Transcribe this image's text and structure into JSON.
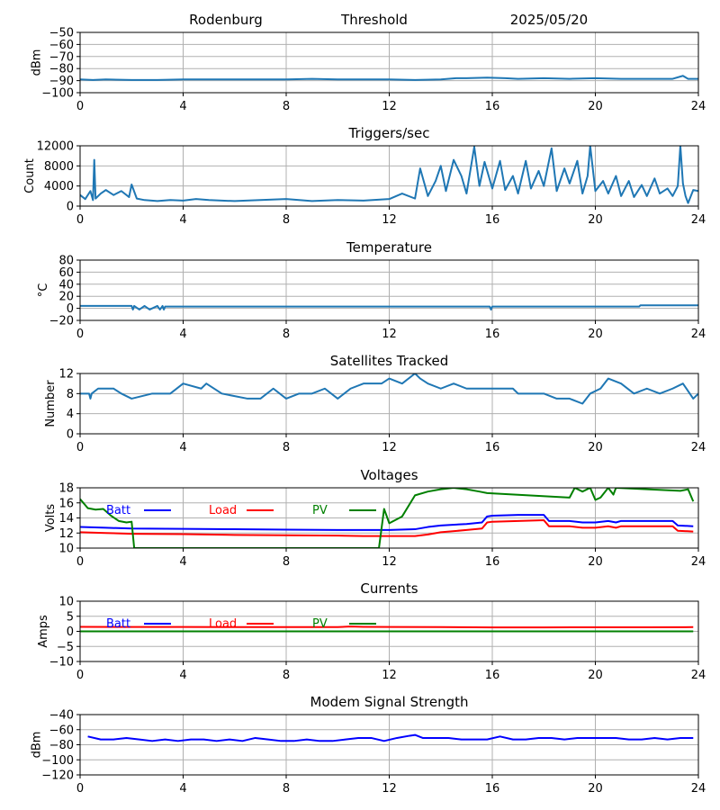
{
  "header": {
    "station": "Rodenburg",
    "mode": "Threshold",
    "date": "2025/05/20"
  },
  "chart_data": [
    {
      "type": "line",
      "title": "",
      "ylabel": "dBm",
      "xlim": [
        0,
        24
      ],
      "ylim": [
        -100,
        -50
      ],
      "xticks": [
        0,
        4,
        8,
        12,
        16,
        20,
        24
      ],
      "yticks": [
        -100,
        -90,
        -80,
        -70,
        -60,
        -50
      ],
      "grid": true,
      "series": [
        {
          "color": "#1f77b4",
          "x": [
            0,
            0.5,
            1,
            2,
            3,
            4,
            5,
            6,
            7,
            8,
            9,
            10,
            11,
            12,
            13,
            14,
            14.6,
            15,
            15.8,
            16.5,
            17,
            18,
            19,
            20,
            21,
            22,
            23,
            23.4,
            23.6,
            24
          ],
          "y": [
            -89,
            -89.5,
            -89,
            -89.5,
            -89.5,
            -89,
            -89,
            -89,
            -89,
            -89,
            -88.5,
            -89,
            -89,
            -89,
            -89.5,
            -89,
            -88,
            -88,
            -87.5,
            -88,
            -88.5,
            -88,
            -88.5,
            -88,
            -88.5,
            -88.5,
            -88.5,
            -86,
            -88.5,
            -88.5
          ]
        }
      ]
    },
    {
      "type": "line",
      "title": "Triggers/sec",
      "ylabel": "Count",
      "xlim": [
        0,
        24
      ],
      "ylim": [
        0,
        12000
      ],
      "xticks": [
        0,
        4,
        8,
        12,
        16,
        20,
        24
      ],
      "yticks": [
        0,
        4000,
        8000,
        12000
      ],
      "grid": true,
      "series": [
        {
          "color": "#1f77b4",
          "x": [
            0,
            0.2,
            0.4,
            0.5,
            0.55,
            0.6,
            0.8,
            1,
            1.3,
            1.6,
            1.9,
            2,
            2.2,
            2.5,
            3,
            3.5,
            4,
            4.5,
            5,
            6,
            7,
            8,
            9,
            10,
            11,
            12,
            12.5,
            13,
            13.2,
            13.5,
            13.8,
            14,
            14.2,
            14.5,
            14.8,
            15,
            15.3,
            15.5,
            15.7,
            16,
            16.3,
            16.5,
            16.8,
            17,
            17.3,
            17.5,
            17.8,
            18,
            18.3,
            18.5,
            18.8,
            19,
            19.3,
            19.5,
            19.7,
            19.8,
            20,
            20.3,
            20.5,
            20.8,
            21,
            21.3,
            21.5,
            21.8,
            22,
            22.3,
            22.5,
            22.8,
            23,
            23.2,
            23.3,
            23.4,
            23.5,
            23.6,
            23.8,
            24
          ],
          "y": [
            2200,
            1400,
            3000,
            1200,
            9200,
            1500,
            2500,
            3200,
            2200,
            3000,
            1800,
            4300,
            1500,
            1200,
            1000,
            1200,
            1100,
            1400,
            1200,
            1000,
            1200,
            1400,
            1000,
            1200,
            1100,
            1400,
            2500,
            1500,
            7500,
            2000,
            5000,
            8000,
            3000,
            9200,
            6000,
            2500,
            11800,
            4000,
            8800,
            3500,
            9000,
            3200,
            6000,
            2500,
            9000,
            3500,
            7000,
            4000,
            11500,
            3000,
            7500,
            4500,
            9000,
            2500,
            6000,
            12000,
            3000,
            5000,
            2500,
            6000,
            2000,
            5000,
            1800,
            4200,
            2000,
            5500,
            2500,
            3500,
            2000,
            4000,
            12000,
            4500,
            2000,
            600,
            3200,
            3000
          ]
        }
      ]
    },
    {
      "type": "line",
      "title": "Temperature",
      "ylabel": "°C",
      "xlim": [
        0,
        24
      ],
      "ylim": [
        -20,
        80
      ],
      "xticks": [
        0,
        4,
        8,
        12,
        16,
        20,
        24
      ],
      "yticks": [
        -20,
        0,
        20,
        40,
        60,
        80
      ],
      "grid": true,
      "series": [
        {
          "color": "#1f77b4",
          "x": [
            0,
            2,
            2.05,
            2.1,
            2.3,
            2.5,
            2.7,
            3.0,
            3.1,
            3.2,
            3.25,
            3.3,
            4,
            8,
            12,
            14.5,
            15.9,
            15.95,
            16,
            18,
            21.7,
            21.75,
            24
          ],
          "y": [
            4,
            4,
            -2,
            4,
            -2,
            4,
            -2,
            4,
            -2,
            4,
            -2,
            3,
            3,
            3,
            3,
            3,
            3,
            -2,
            3,
            3,
            3,
            5,
            5
          ]
        }
      ]
    },
    {
      "type": "line",
      "title": "Satellites Tracked",
      "ylabel": "Number",
      "xlim": [
        0,
        24
      ],
      "ylim": [
        0,
        12
      ],
      "xticks": [
        0,
        4,
        8,
        12,
        16,
        20,
        24
      ],
      "yticks": [
        0,
        4,
        8,
        12
      ],
      "grid": true,
      "series": [
        {
          "color": "#1f77b4",
          "x": [
            0,
            0.35,
            0.4,
            0.45,
            0.7,
            1.3,
            1.6,
            2.0,
            2.8,
            3.5,
            4,
            4.7,
            4.9,
            5.5,
            6.5,
            7,
            7.5,
            8,
            8.5,
            9,
            9.5,
            10,
            10.5,
            11,
            11.7,
            12,
            12.5,
            13,
            13.2,
            13.5,
            14,
            14.5,
            15,
            15.5,
            16,
            16.8,
            17,
            17.5,
            18,
            18.5,
            19,
            19.5,
            19.8,
            20.2,
            20.5,
            21,
            21.5,
            22,
            22.5,
            23,
            23.4,
            23.8,
            24
          ],
          "y": [
            8,
            8,
            7,
            8,
            9,
            9,
            8,
            7,
            8,
            8,
            10,
            9,
            10,
            8,
            7,
            7,
            9,
            7,
            8,
            8,
            9,
            7,
            9,
            10,
            10,
            11,
            10,
            12,
            11,
            10,
            9,
            10,
            9,
            9,
            9,
            9,
            8,
            8,
            8,
            7,
            7,
            6,
            8,
            9,
            11,
            10,
            8,
            9,
            8,
            9,
            10,
            7,
            8
          ]
        }
      ]
    },
    {
      "type": "line",
      "title": "Voltages",
      "ylabel": "Volts",
      "xlim": [
        0,
        24
      ],
      "ylim": [
        10,
        18
      ],
      "xticks": [
        0,
        4,
        8,
        12,
        16,
        20,
        24
      ],
      "yticks": [
        10,
        12,
        14,
        16,
        18
      ],
      "grid": true,
      "legend": "top-left, inline",
      "series": [
        {
          "name": "Batt",
          "color": "#0000ff",
          "x": [
            0,
            1,
            2,
            4,
            6,
            8,
            10,
            11,
            12,
            13,
            13.5,
            14,
            15,
            15.6,
            15.8,
            16,
            17,
            18,
            18.2,
            19,
            19.5,
            20,
            20.5,
            20.8,
            21,
            21.5,
            22,
            23,
            23.2,
            23.8
          ],
          "y": [
            12.8,
            12.7,
            12.6,
            12.55,
            12.5,
            12.45,
            12.4,
            12.4,
            12.4,
            12.5,
            12.8,
            13.0,
            13.2,
            13.4,
            14.2,
            14.3,
            14.4,
            14.4,
            13.6,
            13.6,
            13.4,
            13.4,
            13.6,
            13.4,
            13.6,
            13.6,
            13.6,
            13.6,
            13.0,
            12.9
          ]
        },
        {
          "name": "Load",
          "color": "#ff0000",
          "x": [
            0,
            1,
            2,
            4,
            6,
            8,
            10,
            11,
            12,
            13,
            13.5,
            14,
            15,
            15.6,
            15.8,
            16,
            17,
            18,
            18.2,
            19,
            19.5,
            20,
            20.5,
            20.8,
            21,
            21.5,
            22,
            23,
            23.2,
            23.8
          ],
          "y": [
            12.1,
            12.0,
            11.9,
            11.85,
            11.75,
            11.7,
            11.65,
            11.6,
            11.6,
            11.6,
            11.8,
            12.1,
            12.4,
            12.6,
            13.4,
            13.5,
            13.6,
            13.7,
            12.9,
            12.9,
            12.7,
            12.7,
            12.9,
            12.7,
            12.9,
            12.9,
            12.9,
            12.9,
            12.3,
            12.2
          ]
        },
        {
          "name": "PV",
          "color": "#008000",
          "x": [
            0,
            0.3,
            0.6,
            0.9,
            1.2,
            1.5,
            1.8,
            2.0,
            2.1,
            11.6,
            11.8,
            12.0,
            12.5,
            13.0,
            13.5,
            14.0,
            14.5,
            15.0,
            15.5,
            15.8,
            19.0,
            19.2,
            19.5,
            19.8,
            20.0,
            20.2,
            20.5,
            20.7,
            20.8,
            23.3,
            23.6,
            23.8
          ],
          "y": [
            16.5,
            15.3,
            15.1,
            15.2,
            14.3,
            13.6,
            13.4,
            13.5,
            10,
            10,
            15.2,
            13.3,
            14.2,
            17.0,
            17.5,
            17.8,
            18,
            17.8,
            17.5,
            17.3,
            16.7,
            18,
            17.5,
            18,
            16.4,
            16.7,
            18,
            17.1,
            18,
            17.6,
            17.8,
            16.2
          ]
        }
      ]
    },
    {
      "type": "line",
      "title": "Currents",
      "ylabel": "Amps",
      "xlim": [
        0,
        24
      ],
      "ylim": [
        -10,
        10
      ],
      "xticks": [
        0,
        4,
        8,
        12,
        16,
        20,
        24
      ],
      "yticks": [
        -10,
        -5,
        0,
        5,
        10
      ],
      "grid": true,
      "legend": "top-left, inline",
      "series": [
        {
          "name": "Batt",
          "color": "#0000ff",
          "x": [],
          "y": []
        },
        {
          "name": "Load",
          "color": "#ff0000",
          "x": [
            0,
            2,
            4,
            6,
            8,
            10,
            10.5,
            11,
            12,
            14,
            16,
            18,
            20,
            22,
            23.8
          ],
          "y": [
            1.5,
            1.45,
            1.45,
            1.4,
            1.4,
            1.4,
            1.6,
            1.5,
            1.45,
            1.4,
            1.3,
            1.3,
            1.35,
            1.35,
            1.4
          ]
        },
        {
          "name": "PV",
          "color": "#008000",
          "x": [
            0,
            23.8
          ],
          "y": [
            0,
            0
          ]
        }
      ]
    },
    {
      "type": "line",
      "title": "Modem Signal Strength",
      "ylabel": "dBm",
      "xlim": [
        0,
        24
      ],
      "ylim": [
        -120,
        -40
      ],
      "xticks": [
        0,
        4,
        8,
        12,
        16,
        20,
        24
      ],
      "yticks": [
        -120,
        -100,
        -80,
        -60,
        -40
      ],
      "grid": true,
      "series": [
        {
          "color": "#0000ff",
          "x": [
            0.3,
            0.8,
            1.3,
            1.8,
            2.3,
            2.8,
            3.3,
            3.8,
            4.3,
            4.8,
            5.3,
            5.8,
            6.3,
            6.8,
            7.3,
            7.8,
            8.3,
            8.8,
            9.3,
            9.8,
            10.3,
            10.8,
            11.3,
            11.8,
            12.3,
            12.8,
            13.0,
            13.3,
            13.8,
            14.3,
            14.8,
            15.3,
            15.8,
            16.3,
            16.8,
            17.3,
            17.8,
            18.3,
            18.8,
            19.3,
            19.8,
            20.3,
            20.8,
            21.3,
            21.8,
            22.3,
            22.8,
            23.3,
            23.8
          ],
          "y": [
            -69,
            -73,
            -73,
            -71,
            -73,
            -75,
            -73,
            -75,
            -73,
            -73,
            -75,
            -73,
            -75,
            -71,
            -73,
            -75,
            -75,
            -73,
            -75,
            -75,
            -73,
            -71,
            -71,
            -75,
            -71,
            -68,
            -67,
            -71,
            -71,
            -71,
            -73,
            -73,
            -73,
            -69,
            -73,
            -73,
            -71,
            -71,
            -73,
            -71,
            -71,
            -71,
            -71,
            -73,
            -73,
            -71,
            -73,
            -71,
            -71
          ]
        }
      ]
    }
  ]
}
